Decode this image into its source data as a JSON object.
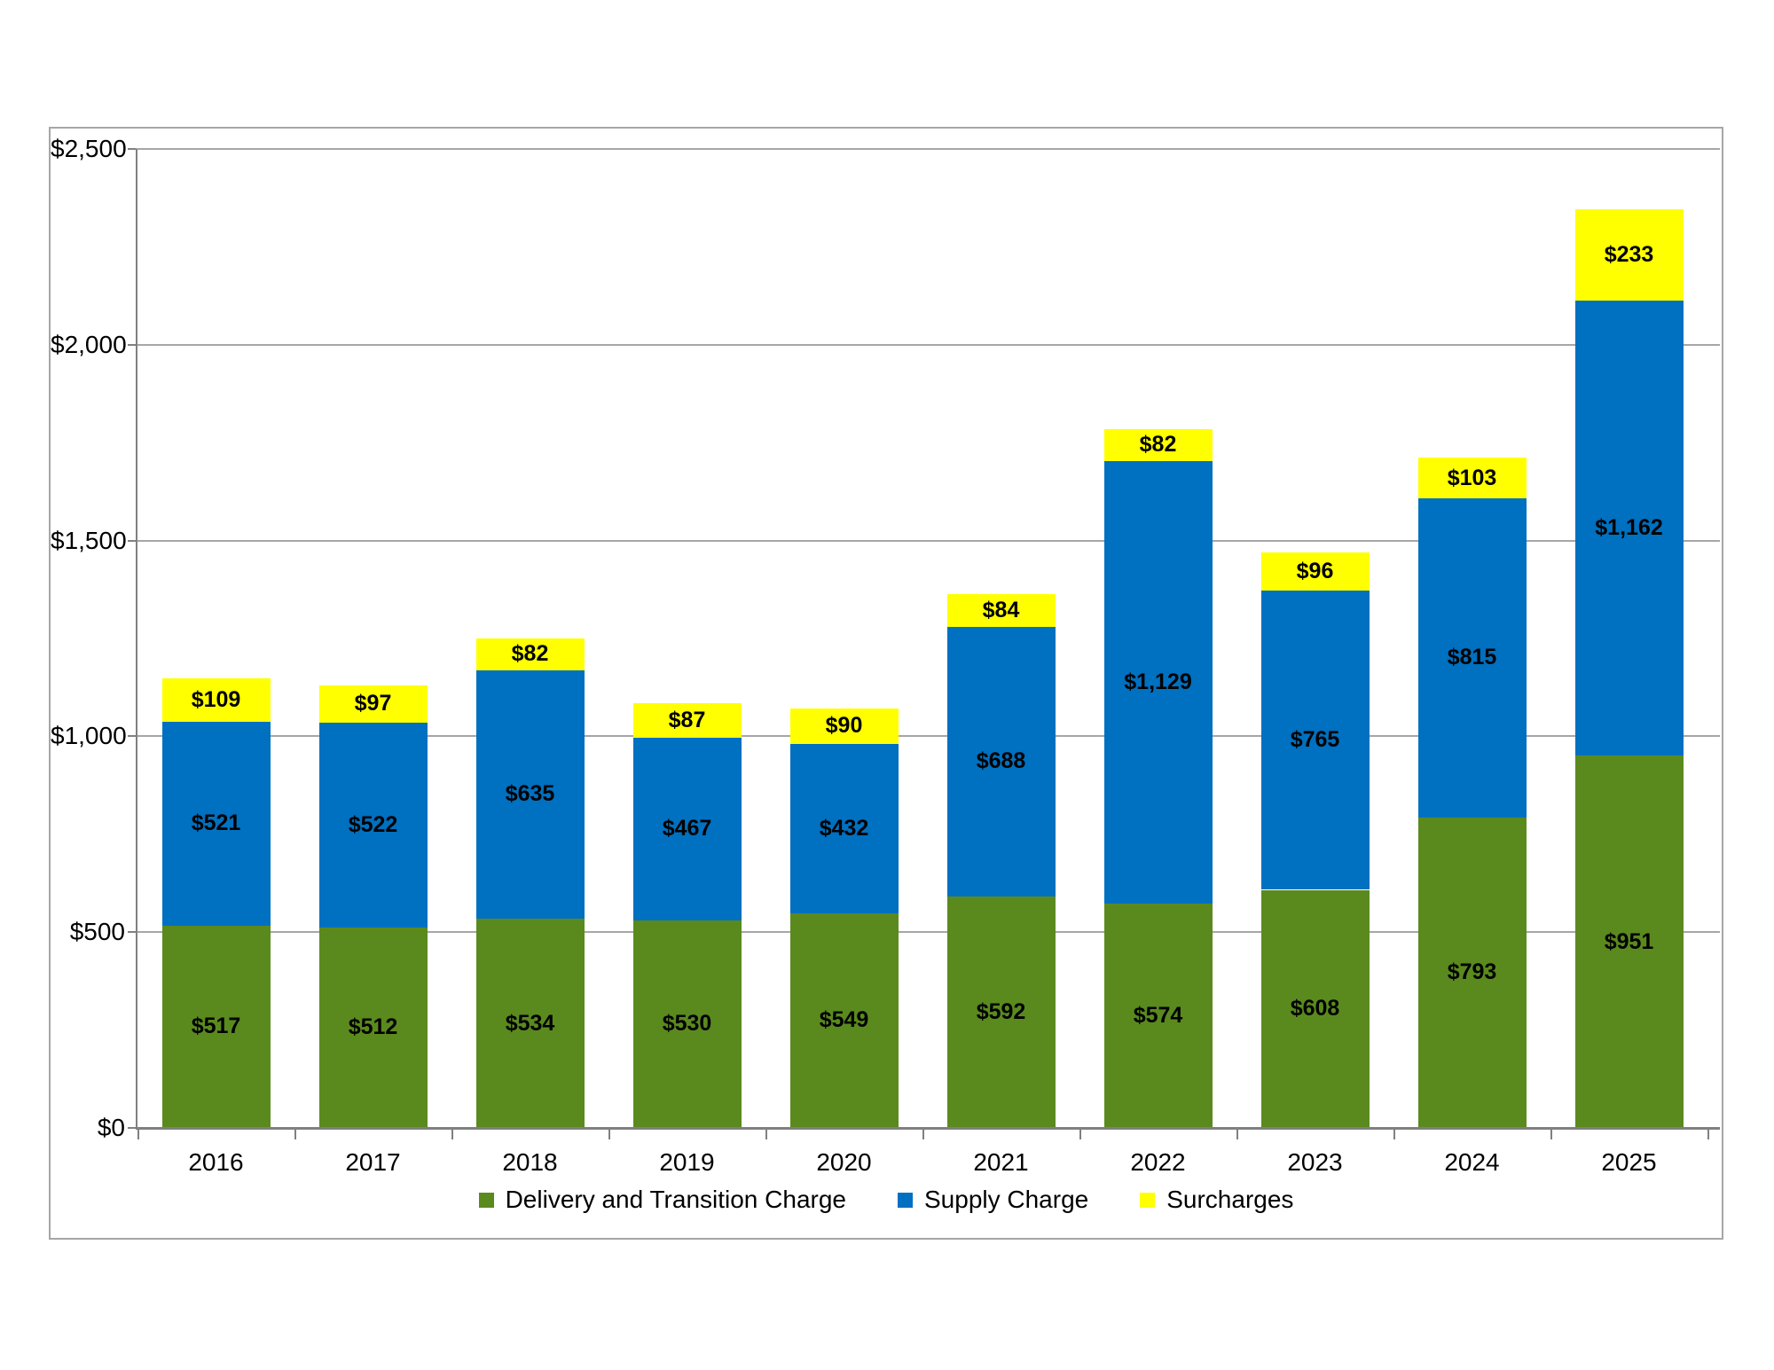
{
  "chart_data": {
    "type": "bar",
    "stacked": true,
    "title": "",
    "xlabel": "",
    "ylabel": "",
    "categories": [
      "2016",
      "2017",
      "2018",
      "2019",
      "2020",
      "2021",
      "2022",
      "2023",
      "2024",
      "2025"
    ],
    "series": [
      {
        "name": "Delivery and Transition Charge",
        "color": "#5A8A1E",
        "values": [
          517,
          512,
          534,
          530,
          549,
          592,
          574,
          608,
          793,
          951
        ],
        "labels": [
          "$517",
          "$512",
          "$534",
          "$530",
          "$549",
          "$592",
          "$574",
          "$608",
          "$793",
          "$951"
        ]
      },
      {
        "name": "Supply Charge",
        "color": "#0070C0",
        "values": [
          521,
          522,
          635,
          467,
          432,
          688,
          1129,
          765,
          815,
          1162
        ],
        "labels": [
          "$521",
          "$522",
          "$635",
          "$467",
          "$432",
          "$688",
          "$1,129",
          "$765",
          "$815",
          "$1,162"
        ]
      },
      {
        "name": "Surcharges",
        "color": "#FFFF00",
        "values": [
          109,
          97,
          82,
          87,
          90,
          84,
          82,
          96,
          103,
          233
        ],
        "labels": [
          "$109",
          "$97",
          "$82",
          "$87",
          "$90",
          "$84",
          "$82",
          "$96",
          "$103",
          "$233"
        ]
      }
    ],
    "totals": [
      1147,
      1131,
      1251,
      1084,
      1071,
      1364,
      1785,
      1469,
      1711,
      2346
    ],
    "y_axis": {
      "tick_labels": [
        "$0",
        "$500",
        "$1,000",
        "$1,500",
        "$2,000",
        "$2,500"
      ],
      "tick_values": [
        0,
        500,
        1000,
        1500,
        2000,
        2500
      ],
      "min": 0,
      "max": 2500,
      "step": 500
    },
    "grid": true,
    "legend_position": "bottom",
    "colors": {
      "axis": "#808080",
      "gridline": "#A6A6A6",
      "frame": "#A6A6A6",
      "data_label": "#000000",
      "background": "#FFFFFF"
    }
  }
}
